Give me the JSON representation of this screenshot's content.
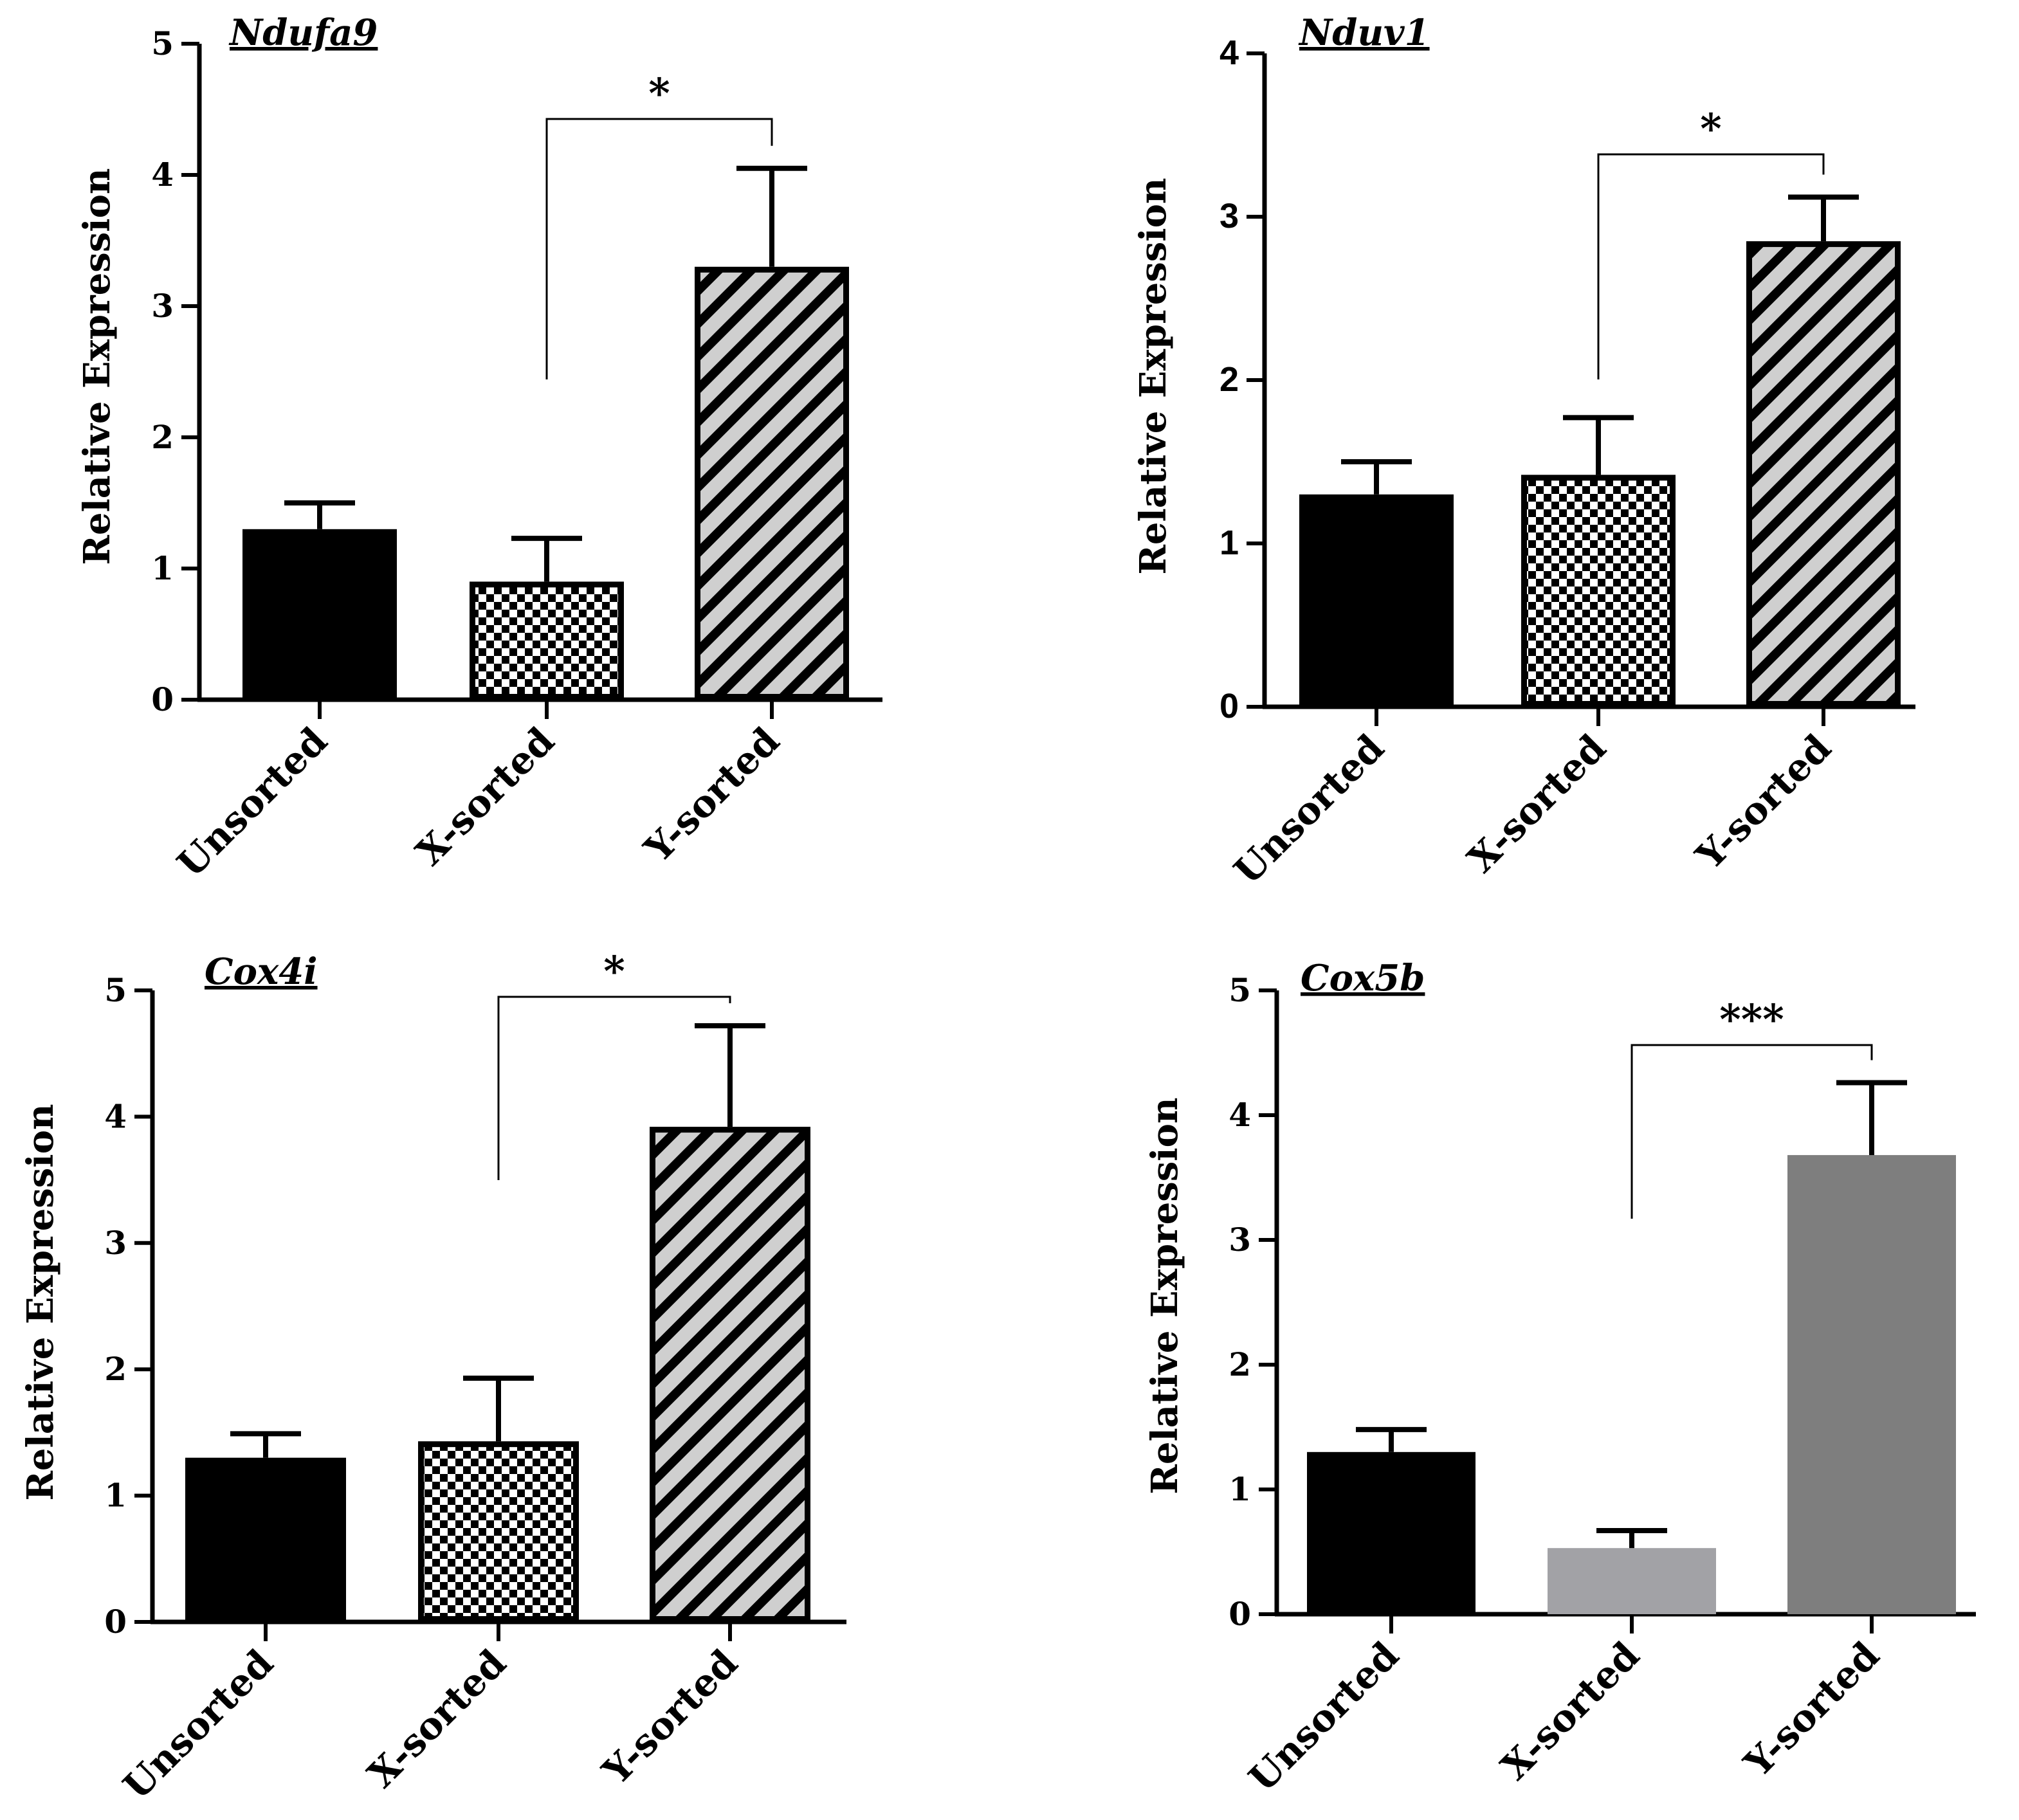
{
  "chart_data": [
    {
      "type": "bar",
      "title": "Ndufa9",
      "ylabel": "Relative Expression",
      "xlabel": "",
      "ylim": [
        0,
        5
      ],
      "yticks": [
        "0",
        "1",
        "2",
        "3",
        "4",
        "5"
      ],
      "categories": [
        "Unsorted",
        "X-sorted",
        "Y-sorted"
      ],
      "values": [
        1.3,
        0.9,
        3.3
      ],
      "errors": [
        0.2,
        0.33,
        0.75
      ],
      "styles": [
        "solid",
        "checker",
        "hatch"
      ],
      "significance": [
        {
          "from": 1,
          "to": 2,
          "label": "*"
        }
      ]
    },
    {
      "type": "bar",
      "title": "Nduv1",
      "ylabel": "Relative Expression",
      "xlabel": "",
      "ylim": [
        0,
        4
      ],
      "yticks": [
        "0",
        "1",
        "2",
        "3",
        "4"
      ],
      "categories": [
        "Unsorted",
        "X-sorted",
        "Y-sorted"
      ],
      "values": [
        1.3,
        1.42,
        2.85
      ],
      "errors": [
        0.2,
        0.35,
        0.27
      ],
      "styles": [
        "solid",
        "checker",
        "hatch"
      ],
      "significance": [
        {
          "from": 1,
          "to": 2,
          "label": "*"
        }
      ]
    },
    {
      "type": "bar",
      "title": "Cox4i",
      "ylabel": "Relative Expression",
      "xlabel": "",
      "ylim": [
        0,
        5
      ],
      "yticks": [
        "0",
        "1",
        "2",
        "3",
        "4",
        "5"
      ],
      "categories": [
        "Unsorted",
        "X-sorted",
        "Y-sorted"
      ],
      "values": [
        1.3,
        1.43,
        3.92
      ],
      "errors": [
        0.19,
        0.5,
        0.8
      ],
      "styles": [
        "solid",
        "checker",
        "hatch"
      ],
      "significance": [
        {
          "from": 1,
          "to": 2,
          "label": "*"
        }
      ]
    },
    {
      "type": "bar",
      "title": "Cox5b",
      "ylabel": "Relative Expression",
      "xlabel": "",
      "ylim": [
        0,
        5
      ],
      "yticks": [
        "0",
        "1",
        "2",
        "3",
        "4",
        "5"
      ],
      "categories": [
        "Unsorted",
        "X-sorted",
        "Y-sorted"
      ],
      "values": [
        1.3,
        0.53,
        3.68
      ],
      "errors": [
        0.18,
        0.14,
        0.58
      ],
      "styles": [
        "#000000",
        "#a2a2a6",
        "#7e7e7e"
      ],
      "significance": [
        {
          "from": 1,
          "to": 2,
          "label": "***"
        }
      ]
    }
  ]
}
